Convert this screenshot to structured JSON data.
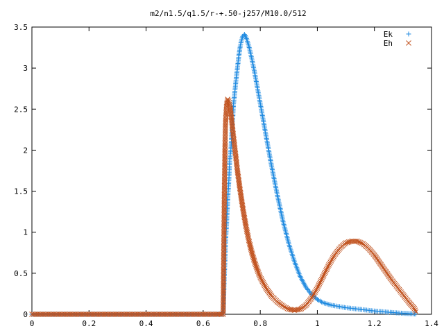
{
  "chart_data": {
    "type": "scatter",
    "title": "m2/n1.5/q1.5/r-+.50-j257/M10.0/512",
    "xlabel": "",
    "ylabel": "",
    "xlim": [
      0,
      1.4
    ],
    "ylim": [
      0,
      3.5
    ],
    "x_ticks": [
      "0",
      "0.2",
      "0.4",
      "0.6",
      "0.8",
      "1",
      "1.2",
      "1.4"
    ],
    "y_ticks": [
      "0",
      "0.5",
      "1",
      "1.5",
      "2",
      "2.5",
      "3",
      "3.5"
    ],
    "grid": false,
    "legend_position": "top-right",
    "series": [
      {
        "name": "Ek",
        "marker": "plus",
        "color": "#1f8ae0",
        "points": [
          [
            0.0,
            0.0
          ],
          [
            0.05,
            0.0
          ],
          [
            0.1,
            0.0
          ],
          [
            0.15,
            0.0
          ],
          [
            0.2,
            0.0
          ],
          [
            0.25,
            0.0
          ],
          [
            0.3,
            0.0
          ],
          [
            0.35,
            0.0
          ],
          [
            0.4,
            0.0
          ],
          [
            0.45,
            0.0
          ],
          [
            0.5,
            0.0
          ],
          [
            0.55,
            0.0
          ],
          [
            0.6,
            0.0
          ],
          [
            0.65,
            0.0
          ],
          [
            0.67,
            0.0
          ],
          [
            0.674,
            0.45
          ],
          [
            0.676,
            0.62
          ],
          [
            0.678,
            0.86
          ],
          [
            0.682,
            1.1
          ],
          [
            0.686,
            1.4
          ],
          [
            0.69,
            1.63
          ],
          [
            0.693,
            1.88
          ],
          [
            0.697,
            2.0
          ],
          [
            0.7,
            2.18
          ],
          [
            0.703,
            2.35
          ],
          [
            0.706,
            2.55
          ],
          [
            0.71,
            2.68
          ],
          [
            0.715,
            2.85
          ],
          [
            0.72,
            3.0
          ],
          [
            0.725,
            3.15
          ],
          [
            0.73,
            3.27
          ],
          [
            0.735,
            3.35
          ],
          [
            0.74,
            3.4
          ],
          [
            0.745,
            3.41
          ],
          [
            0.75,
            3.38
          ],
          [
            0.76,
            3.27
          ],
          [
            0.77,
            3.12
          ],
          [
            0.78,
            2.95
          ],
          [
            0.79,
            2.76
          ],
          [
            0.8,
            2.57
          ],
          [
            0.82,
            2.18
          ],
          [
            0.84,
            1.8
          ],
          [
            0.86,
            1.45
          ],
          [
            0.88,
            1.13
          ],
          [
            0.9,
            0.86
          ],
          [
            0.92,
            0.64
          ],
          [
            0.94,
            0.46
          ],
          [
            0.96,
            0.33
          ],
          [
            0.98,
            0.24
          ],
          [
            1.0,
            0.18
          ],
          [
            1.02,
            0.14
          ],
          [
            1.05,
            0.11
          ],
          [
            1.1,
            0.08
          ],
          [
            1.15,
            0.06
          ],
          [
            1.2,
            0.04
          ],
          [
            1.25,
            0.025
          ],
          [
            1.3,
            0.012
          ],
          [
            1.33,
            0.006
          ],
          [
            1.345,
            0.003
          ]
        ]
      },
      {
        "name": "Eh",
        "marker": "cross",
        "color": "#c1521e",
        "points": [
          [
            0.0,
            0.0
          ],
          [
            0.05,
            0.0
          ],
          [
            0.1,
            0.0
          ],
          [
            0.15,
            0.0
          ],
          [
            0.2,
            0.0
          ],
          [
            0.25,
            0.0
          ],
          [
            0.3,
            0.0
          ],
          [
            0.35,
            0.0
          ],
          [
            0.4,
            0.0
          ],
          [
            0.45,
            0.0
          ],
          [
            0.5,
            0.0
          ],
          [
            0.55,
            0.0
          ],
          [
            0.6,
            0.0
          ],
          [
            0.65,
            0.0
          ],
          [
            0.67,
            0.0
          ],
          [
            0.674,
            1.38
          ],
          [
            0.676,
            1.92
          ],
          [
            0.678,
            2.3
          ],
          [
            0.682,
            2.55
          ],
          [
            0.686,
            2.62
          ],
          [
            0.69,
            2.6
          ],
          [
            0.695,
            2.52
          ],
          [
            0.7,
            2.36
          ],
          [
            0.705,
            2.2
          ],
          [
            0.71,
            2.05
          ],
          [
            0.715,
            1.9
          ],
          [
            0.72,
            1.75
          ],
          [
            0.73,
            1.5
          ],
          [
            0.74,
            1.27
          ],
          [
            0.75,
            1.07
          ],
          [
            0.76,
            0.9
          ],
          [
            0.77,
            0.76
          ],
          [
            0.78,
            0.64
          ],
          [
            0.79,
            0.54
          ],
          [
            0.8,
            0.45
          ],
          [
            0.82,
            0.32
          ],
          [
            0.84,
            0.22
          ],
          [
            0.86,
            0.15
          ],
          [
            0.88,
            0.1
          ],
          [
            0.9,
            0.06
          ],
          [
            0.92,
            0.05
          ],
          [
            0.94,
            0.06
          ],
          [
            0.96,
            0.11
          ],
          [
            0.98,
            0.2
          ],
          [
            1.0,
            0.32
          ],
          [
            1.02,
            0.46
          ],
          [
            1.04,
            0.6
          ],
          [
            1.06,
            0.72
          ],
          [
            1.08,
            0.81
          ],
          [
            1.1,
            0.87
          ],
          [
            1.12,
            0.89
          ],
          [
            1.14,
            0.89
          ],
          [
            1.16,
            0.86
          ],
          [
            1.18,
            0.8
          ],
          [
            1.2,
            0.72
          ],
          [
            1.22,
            0.62
          ],
          [
            1.24,
            0.52
          ],
          [
            1.26,
            0.42
          ],
          [
            1.28,
            0.33
          ],
          [
            1.3,
            0.24
          ],
          [
            1.32,
            0.15
          ],
          [
            1.34,
            0.07
          ],
          [
            1.345,
            0.03
          ]
        ]
      }
    ]
  }
}
